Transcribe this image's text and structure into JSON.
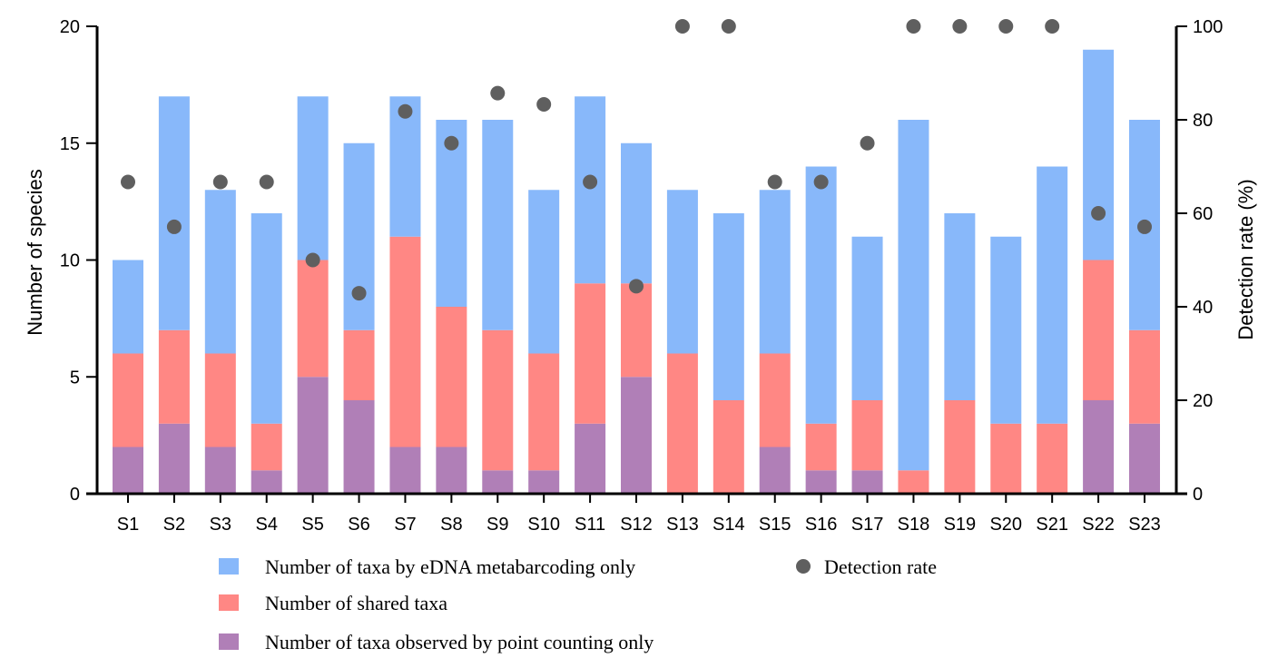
{
  "chart_data": {
    "type": "bar",
    "stacked": true,
    "categories": [
      "S1",
      "S2",
      "S3",
      "S4",
      "S5",
      "S6",
      "S7",
      "S8",
      "S9",
      "S10",
      "S11",
      "S12",
      "S13",
      "S14",
      "S15",
      "S16",
      "S17",
      "S18",
      "S19",
      "S20",
      "S21",
      "S22",
      "S23"
    ],
    "series": [
      {
        "name": "Number of taxa observed by point counting only",
        "color": "#b07fb7",
        "values": [
          2,
          3,
          2,
          1,
          5,
          4,
          2,
          2,
          1,
          1,
          3,
          5,
          0,
          0,
          2,
          1,
          1,
          0,
          0,
          0,
          0,
          4,
          3
        ]
      },
      {
        "name": "Number of shared taxa",
        "color": "#ff8784",
        "values": [
          4,
          4,
          4,
          2,
          5,
          3,
          9,
          6,
          6,
          5,
          6,
          4,
          6,
          4,
          4,
          2,
          3,
          1,
          4,
          3,
          3,
          6,
          4
        ]
      },
      {
        "name": "Number of taxa by eDNA metabarcoding only",
        "color": "#88b8fa",
        "values": [
          4,
          10,
          7,
          9,
          7,
          8,
          6,
          8,
          9,
          7,
          8,
          6,
          7,
          8,
          7,
          11,
          7,
          15,
          8,
          8,
          11,
          9,
          9
        ]
      }
    ],
    "secondary": {
      "name": "Detection rate",
      "type": "scatter",
      "color": "#5f5f5f",
      "values": [
        66.7,
        57.1,
        66.7,
        66.7,
        50,
        42.9,
        81.8,
        75,
        85.7,
        83.3,
        66.7,
        44.4,
        100,
        100,
        66.7,
        66.7,
        75,
        100,
        100,
        100,
        100,
        60,
        57.1
      ]
    },
    "ylabel": "Number of species",
    "y2label": "Detection rate (%)",
    "ylim": [
      0,
      20
    ],
    "y2lim": [
      0,
      100
    ],
    "yticks": [
      "0",
      "5",
      "10",
      "15",
      "20"
    ],
    "y2ticks": [
      "0",
      "20",
      "40",
      "60",
      "80",
      "100"
    ],
    "grid": false,
    "legend": {
      "placement": "bottom",
      "items": [
        {
          "label": "Number of taxa by eDNA metabarcoding only",
          "color": "#88b8fa",
          "shape": "square"
        },
        {
          "label": "Number of shared taxa",
          "color": "#ff8784",
          "shape": "square"
        },
        {
          "label": "Number of taxa observed by point counting only",
          "color": "#b07fb7",
          "shape": "square"
        },
        {
          "label": "Detection rate",
          "color": "#5f5f5f",
          "shape": "circle"
        }
      ]
    }
  }
}
